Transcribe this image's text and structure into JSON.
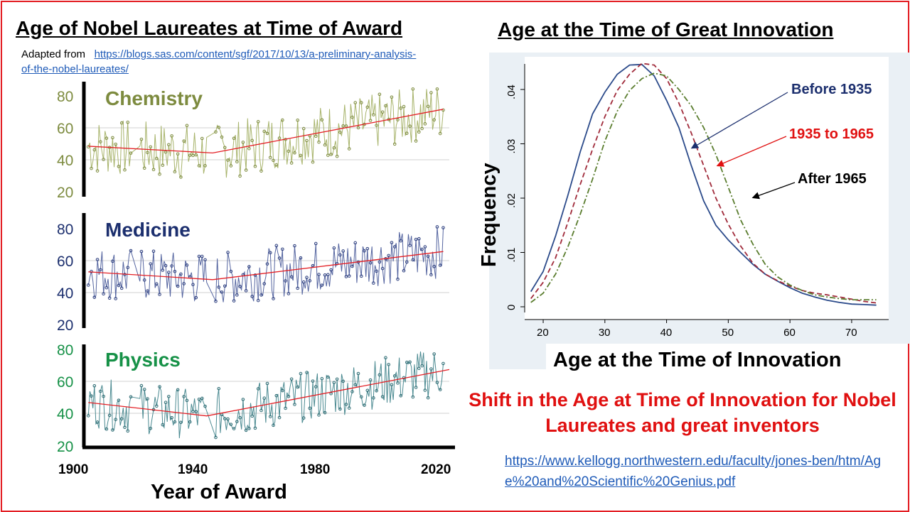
{
  "colors": {
    "accent_red": "#e31e24",
    "chem": "#7d8b3f",
    "med": "#1c2f6e",
    "phys": "#169147",
    "phys_line": "#2d6b73",
    "kde_blue": "#2b4a8a",
    "kde_red": "#a02a3a",
    "kde_green": "#5a7d2e",
    "link": "#1f5bb8"
  },
  "left": {
    "title": "Age of Nobel Laureates at Time of Award",
    "adapted_prefix": "Adapted from",
    "adapted_link": "https://blogs.sas.com/content/sgf/2017/10/13/a-preliminary-analysis-of-the-nobel-laureates/",
    "xlabel": "Year of Award"
  },
  "right": {
    "title": "Age at the Time of Great Innovation",
    "shift_text": "Shift in the Age at Time of Innovation for Nobel Laureates and great inventors",
    "source_link": "https://www.kellogg.northwestern.edu/faculty/jones-ben/htm/Age%20and%20Scientific%20Genius.pdf"
  },
  "chart_data": [
    {
      "type": "line",
      "title": "Chemistry",
      "x_range": [
        1900,
        2020
      ],
      "ylim": [
        20,
        85
      ],
      "y_ticks": [
        "80",
        "60",
        "40",
        "20"
      ],
      "trend": {
        "x": [
          1901,
          1942,
          2018
        ],
        "y": [
          50,
          46,
          72
        ]
      },
      "series_note": "annual laureate ages 1901-2018, approx. 35-85"
    },
    {
      "type": "line",
      "title": "Medicine",
      "x_range": [
        1900,
        2020
      ],
      "ylim": [
        20,
        90
      ],
      "y_ticks": [
        "80",
        "60",
        "40",
        "20"
      ],
      "trend": {
        "x": [
          1901,
          1942,
          2018
        ],
        "y": [
          56,
          51,
          69
        ]
      },
      "series_note": "annual laureate ages 1901-2018, approx. 32-88"
    },
    {
      "type": "line",
      "title": "Physics",
      "x_range": [
        1900,
        2020
      ],
      "ylim": [
        20,
        85
      ],
      "y_ticks": [
        "80",
        "60",
        "40",
        "20"
      ],
      "x_ticks": [
        "1900",
        "1940",
        "1980",
        "2020"
      ],
      "xlabel": "Year of Award",
      "trend": {
        "x": [
          1901,
          1940,
          2020
        ],
        "y": [
          50,
          41,
          72
        ]
      },
      "series_note": "annual laureate ages 1901-2018, approx. 25-88"
    },
    {
      "type": "line",
      "title": "Age at the Time of Great Innovation",
      "xlabel": "Age at the Time of Innovation",
      "ylabel": "Frequency",
      "x_ticks": [
        "20",
        "30",
        "40",
        "50",
        "60",
        "70"
      ],
      "y_ticks": [
        "0",
        ".01",
        ".02",
        ".03",
        ".04"
      ],
      "xlim": [
        17,
        76
      ],
      "ylim": [
        -0.001,
        0.046
      ],
      "x": [
        18,
        20,
        22,
        24,
        26,
        28,
        30,
        32,
        34,
        36,
        38,
        40,
        42,
        44,
        46,
        48,
        50,
        52,
        54,
        56,
        58,
        60,
        62,
        64,
        66,
        68,
        70,
        72,
        74
      ],
      "series": [
        {
          "name": "Before 1935",
          "style": "solid",
          "values": [
            0.0028,
            0.0065,
            0.013,
            0.0205,
            0.0285,
            0.0355,
            0.0395,
            0.0428,
            0.0445,
            0.0446,
            0.0425,
            0.038,
            0.033,
            0.026,
            0.0195,
            0.015,
            0.0123,
            0.01,
            0.0078,
            0.006,
            0.0047,
            0.0035,
            0.0025,
            0.0018,
            0.0012,
            0.0008,
            0.0005,
            0.0004,
            0.0003
          ]
        },
        {
          "name": "1935 to 1965",
          "style": "dash",
          "values": [
            0.0015,
            0.0045,
            0.009,
            0.0155,
            0.0225,
            0.029,
            0.035,
            0.0398,
            0.0428,
            0.0448,
            0.0445,
            0.042,
            0.0375,
            0.032,
            0.026,
            0.02,
            0.0152,
            0.0112,
            0.008,
            0.006,
            0.0048,
            0.0038,
            0.003,
            0.0025,
            0.0022,
            0.0018,
            0.0014,
            0.001,
            0.0007
          ]
        },
        {
          "name": "After 1965",
          "style": "dashdot",
          "values": [
            0.0008,
            0.0025,
            0.006,
            0.011,
            0.017,
            0.0235,
            0.0305,
            0.036,
            0.0398,
            0.042,
            0.043,
            0.0425,
            0.04,
            0.037,
            0.033,
            0.028,
            0.022,
            0.016,
            0.0115,
            0.0078,
            0.0055,
            0.004,
            0.003,
            0.0022,
            0.0018,
            0.0015,
            0.0013,
            0.0013,
            0.0013
          ]
        }
      ]
    }
  ]
}
